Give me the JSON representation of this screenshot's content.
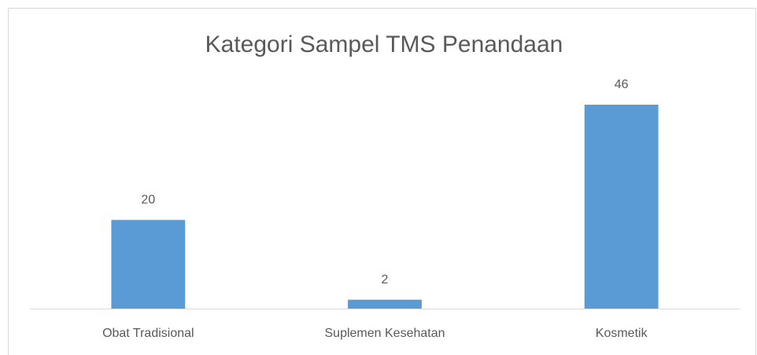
{
  "chart_data": {
    "type": "bar",
    "title": "Kategori Sampel TMS Penandaan",
    "categories": [
      "Obat Tradisional",
      "Suplemen Kesehatan",
      "Kosmetik"
    ],
    "values": [
      20,
      2,
      46
    ],
    "color": "#5b9bd5",
    "ylim": [
      0,
      50
    ],
    "data_labels": true
  }
}
